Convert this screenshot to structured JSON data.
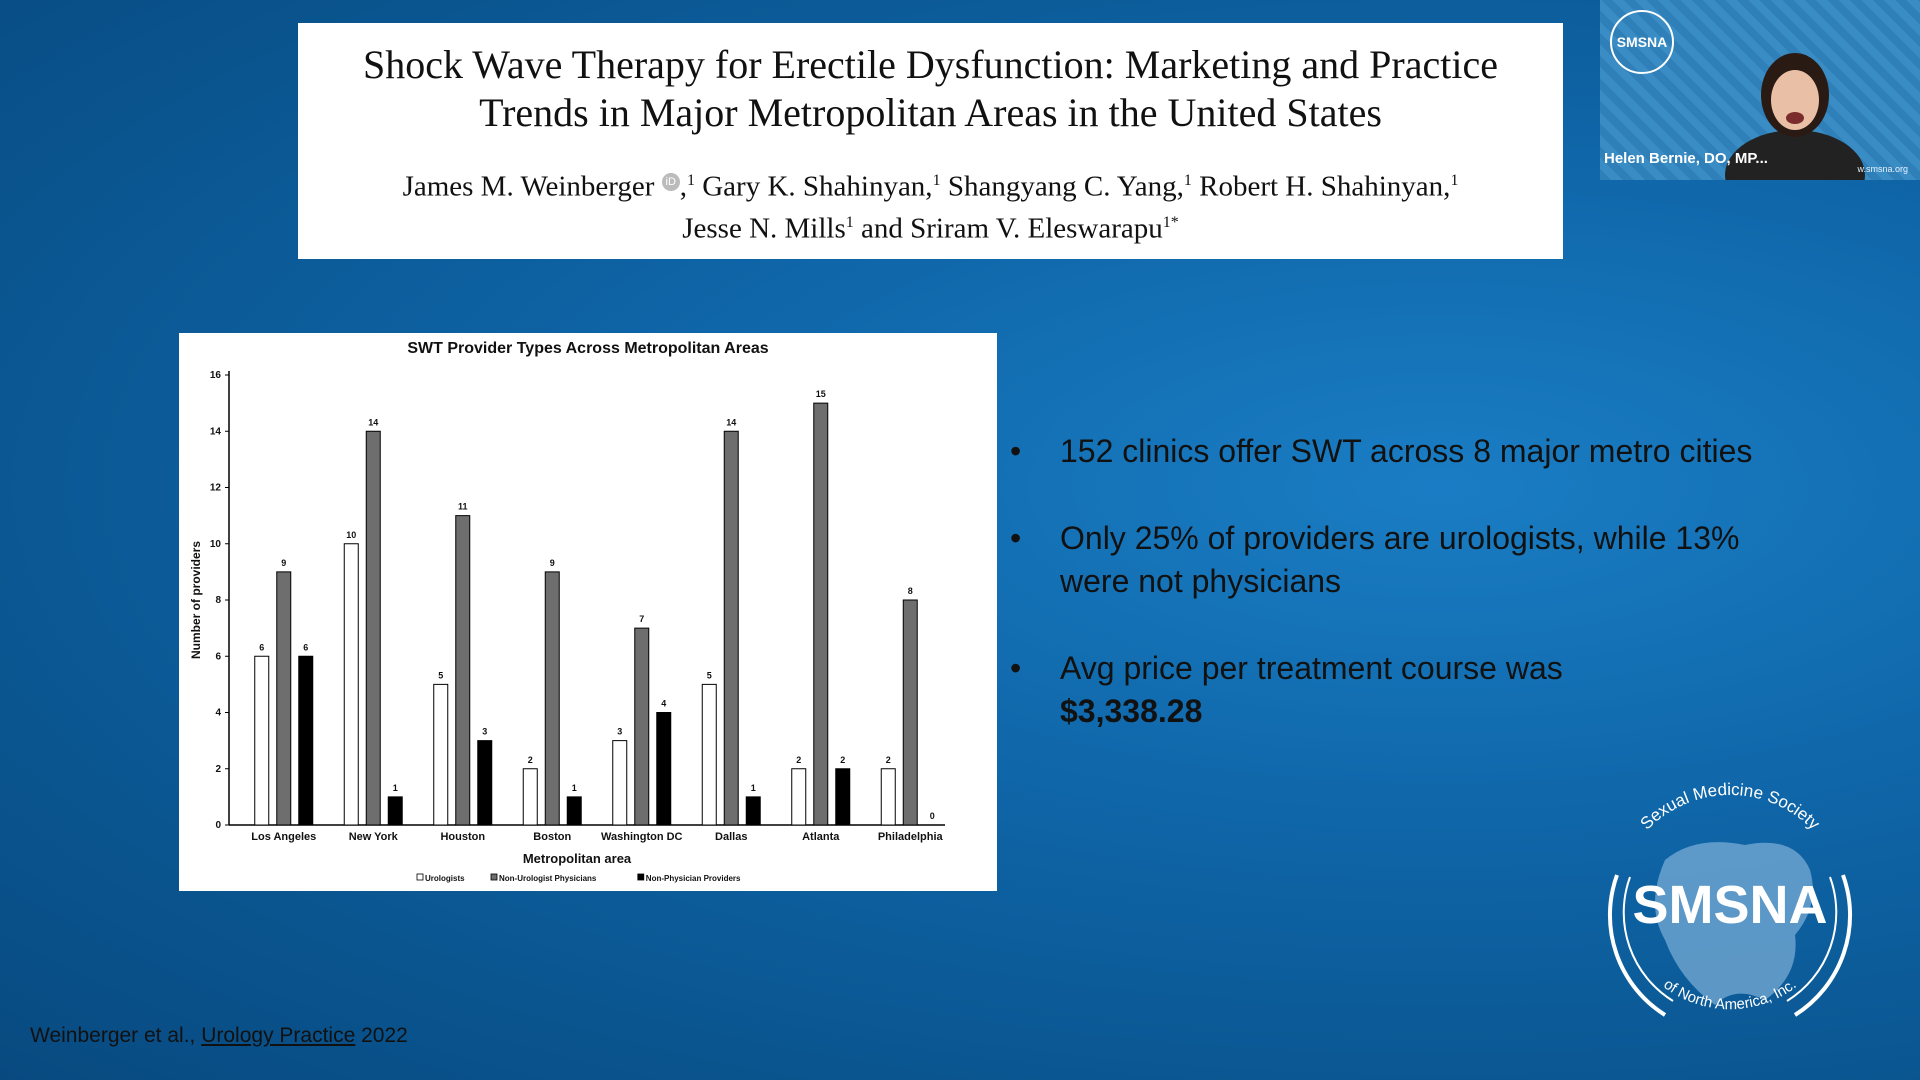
{
  "paper": {
    "title": "Shock Wave Therapy for Erectile Dysfunction: Marketing and Practice Trends in Major Metropolitan Areas in the United States",
    "authors": [
      {
        "name": "James M. Weinberger",
        "sup": "1",
        "orcid": true
      },
      {
        "name": "Gary K. Shahinyan,",
        "sup": "1"
      },
      {
        "name": "Shangyang C. Yang,",
        "sup": "1"
      },
      {
        "name": "Robert H. Shahinyan,",
        "sup": "1"
      },
      {
        "name": "Jesse N. Mills",
        "sup": "1"
      },
      {
        "name": "and Sriram V. Eleswarapu",
        "sup": "1*"
      }
    ],
    "orcid_label": "iD"
  },
  "chart_data": {
    "type": "bar",
    "title": "SWT Provider Types Across Metropolitan Areas",
    "xlabel": "Metropolitan area",
    "ylabel": "Number of providers",
    "ylim": [
      0,
      16
    ],
    "yticks": [
      0,
      2,
      4,
      6,
      8,
      10,
      12,
      14,
      16
    ],
    "categories": [
      "Los Angeles",
      "New York",
      "Houston",
      "Boston",
      "Washington DC",
      "Dallas",
      "Atlanta",
      "Philadelphia"
    ],
    "series": [
      {
        "name": "Urologists",
        "color": "#ffffff",
        "values": [
          6,
          10,
          5,
          2,
          3,
          5,
          2,
          2
        ]
      },
      {
        "name": "Non-Urologist Physicians",
        "color": "#6e6e6e",
        "values": [
          9,
          14,
          11,
          9,
          7,
          14,
          15,
          8
        ]
      },
      {
        "name": "Non-Physician Providers",
        "color": "#000000",
        "values": [
          6,
          1,
          3,
          1,
          4,
          1,
          2,
          0
        ]
      }
    ],
    "legend_position": "bottom",
    "grid": false
  },
  "bullets": [
    {
      "text": "152 clinics offer SWT across 8 major metro cities",
      "bold": ""
    },
    {
      "text": "Only 25% of providers are urologists, while 13% were not physicians",
      "bold": ""
    },
    {
      "text": "Avg price per treatment course was",
      "bold": "$3,338.28"
    }
  ],
  "bullet_marker": "•",
  "citation": {
    "prefix": "Weinberger et al.,",
    "journal": "Urology Practice",
    "year": "2022"
  },
  "video": {
    "participant_name": "Helen Bernie, DO, MP...",
    "logo_text": "SMSNA",
    "url": "w.smsna.org"
  },
  "logo": {
    "top_text": "Sexual Medicine Society",
    "main": "SMSNA",
    "bottom_text": "of North America, Inc."
  },
  "colors": {
    "background": "#0f66a8",
    "accent": "#1a7dc4"
  }
}
